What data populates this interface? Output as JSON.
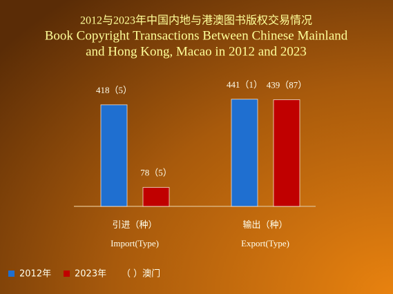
{
  "chart_data": {
    "type": "bar",
    "title": "2012与2023年中国内地与港澳图书版权交易情况",
    "subtitle": [
      "Book Copyright Transactions Between Chinese Mainland",
      "and Hong Kong, Macao in 2012 and 2023"
    ],
    "categories": [
      "引进（种）",
      "输出（种）"
    ],
    "categories_en": [
      "Import(Type)",
      "Export(Type)"
    ],
    "series": [
      {
        "name": "2012年",
        "color": "#1f6fd0",
        "values": [
          418,
          441
        ],
        "value_labels": [
          "418（5）",
          "441（1）"
        ]
      },
      {
        "name": "2023年",
        "color": "#c00000",
        "values": [
          78,
          439
        ],
        "value_labels": [
          "78（5）",
          "439（87）"
        ]
      }
    ],
    "legend_note": "（ ）澳门",
    "ylim": [
      0,
      500
    ]
  }
}
